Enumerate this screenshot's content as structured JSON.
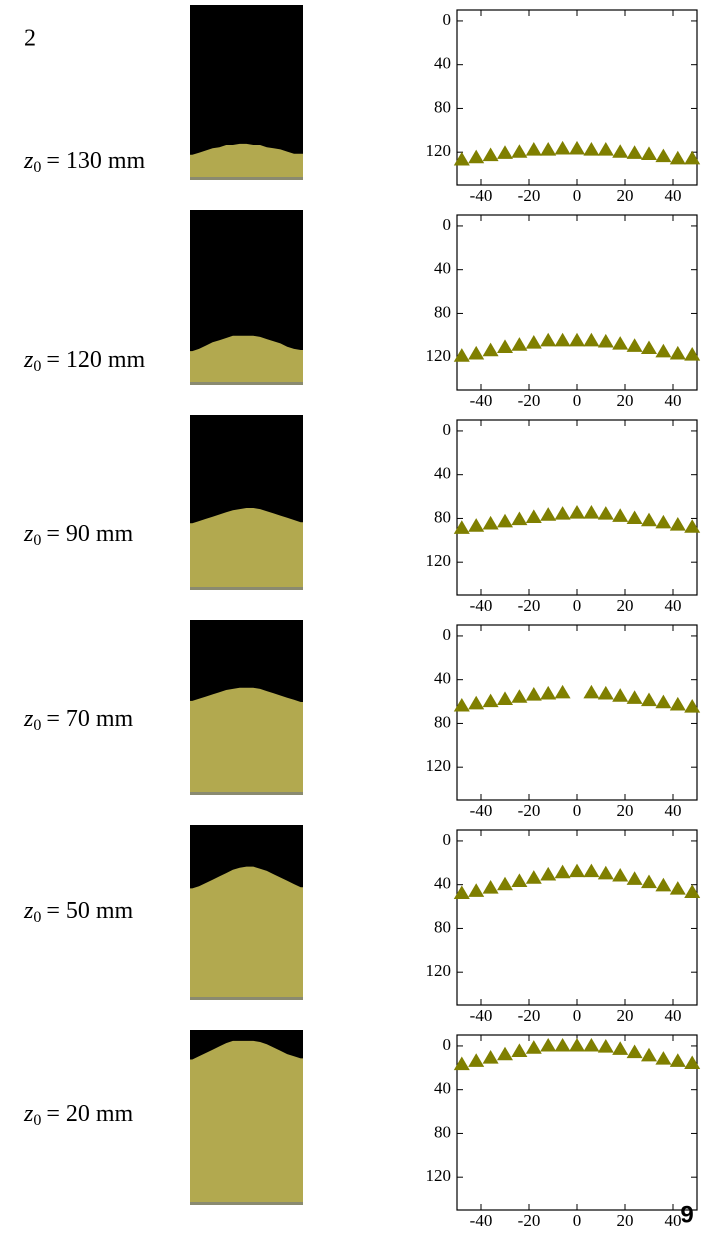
{
  "corner_text": "2",
  "page_number": "9",
  "chart_data": [
    {
      "type": "scatter",
      "annotation": {
        "symbol": "z",
        "subscript": "0",
        "text": "= 130 mm"
      },
      "color": "#7f7f00",
      "marker": "triangle",
      "x": [
        -48,
        -42,
        -36,
        -30,
        -24,
        -18,
        -12,
        -6,
        0,
        6,
        12,
        18,
        24,
        30,
        36,
        42,
        48
      ],
      "y": [
        127,
        125,
        123,
        121,
        120,
        118,
        118,
        117,
        117,
        118,
        118,
        120,
        121,
        122,
        124,
        126,
        126
      ],
      "xlim": [
        -50,
        50
      ],
      "ylim": [
        -10,
        150
      ],
      "y_inverted": true,
      "xticks": [
        -40,
        -20,
        0,
        20,
        40
      ],
      "yticks": [
        0,
        40,
        80,
        120
      ]
    },
    {
      "type": "scatter",
      "annotation": {
        "symbol": "z",
        "subscript": "0",
        "text": "= 120 mm"
      },
      "color": "#7f7f00",
      "marker": "triangle",
      "x": [
        -48,
        -42,
        -36,
        -30,
        -24,
        -18,
        -12,
        -6,
        0,
        6,
        12,
        18,
        24,
        30,
        36,
        42,
        48
      ],
      "y": [
        119,
        117,
        114,
        111,
        109,
        107,
        105,
        105,
        105,
        105,
        106,
        108,
        110,
        112,
        115,
        117,
        118
      ],
      "xlim": [
        -50,
        50
      ],
      "ylim": [
        -10,
        150
      ],
      "y_inverted": true,
      "xticks": [
        -40,
        -20,
        0,
        20,
        40
      ],
      "yticks": [
        0,
        40,
        80,
        120
      ]
    },
    {
      "type": "scatter",
      "annotation": {
        "symbol": "z",
        "subscript": "0",
        "text": "= 90 mm"
      },
      "color": "#7f7f00",
      "marker": "triangle",
      "x": [
        -48,
        -42,
        -36,
        -30,
        -24,
        -18,
        -12,
        -6,
        0,
        6,
        12,
        18,
        24,
        30,
        36,
        42,
        48
      ],
      "y": [
        89,
        87,
        85,
        83,
        81,
        79,
        77,
        76,
        75,
        75,
        76,
        78,
        80,
        82,
        84,
        86,
        88
      ],
      "xlim": [
        -50,
        50
      ],
      "ylim": [
        -10,
        150
      ],
      "y_inverted": true,
      "xticks": [
        -40,
        -20,
        0,
        20,
        40
      ],
      "yticks": [
        0,
        40,
        80,
        120
      ]
    },
    {
      "type": "scatter",
      "annotation": {
        "symbol": "z",
        "subscript": "0",
        "text": "= 70 mm"
      },
      "color": "#7f7f00",
      "marker": "triangle",
      "x": [
        -48,
        -42,
        -36,
        -30,
        -24,
        -18,
        -12,
        -6,
        0,
        6,
        12,
        18,
        24,
        30,
        36,
        42,
        48
      ],
      "y": [
        64,
        62,
        60,
        58,
        56,
        54,
        53,
        52,
        null,
        52,
        53,
        55,
        57,
        59,
        61,
        63,
        65
      ],
      "xlim": [
        -50,
        50
      ],
      "ylim": [
        -10,
        150
      ],
      "y_inverted": true,
      "xticks": [
        -40,
        -20,
        0,
        20,
        40
      ],
      "yticks": [
        0,
        40,
        80,
        120
      ]
    },
    {
      "type": "scatter",
      "annotation": {
        "symbol": "z",
        "subscript": "0",
        "text": "= 50 mm"
      },
      "color": "#7f7f00",
      "marker": "triangle",
      "x": [
        -48,
        -42,
        -36,
        -30,
        -24,
        -18,
        -12,
        -6,
        0,
        6,
        12,
        18,
        24,
        30,
        36,
        42,
        48
      ],
      "y": [
        48,
        46,
        43,
        40,
        37,
        34,
        31,
        29,
        28,
        28,
        30,
        32,
        35,
        38,
        41,
        44,
        47
      ],
      "xlim": [
        -50,
        50
      ],
      "ylim": [
        -10,
        150
      ],
      "y_inverted": true,
      "xticks": [
        -40,
        -20,
        0,
        20,
        40
      ],
      "yticks": [
        0,
        40,
        80,
        120
      ]
    },
    {
      "type": "scatter",
      "annotation": {
        "symbol": "z",
        "subscript": "0",
        "text": "= 20 mm"
      },
      "color": "#7f7f00",
      "marker": "triangle",
      "x": [
        -48,
        -42,
        -36,
        -30,
        -24,
        -18,
        -12,
        -6,
        0,
        6,
        12,
        18,
        24,
        30,
        36,
        42,
        48
      ],
      "y": [
        17,
        14,
        11,
        8,
        5,
        2,
        0,
        0,
        0,
        0,
        1,
        3,
        6,
        9,
        12,
        14,
        16
      ],
      "xlim": [
        -50,
        50
      ],
      "ylim": [
        -10,
        150
      ],
      "y_inverted": true,
      "xticks": [
        -40,
        -20,
        0,
        20,
        40
      ],
      "yticks": [
        0,
        40,
        80,
        120
      ]
    }
  ]
}
